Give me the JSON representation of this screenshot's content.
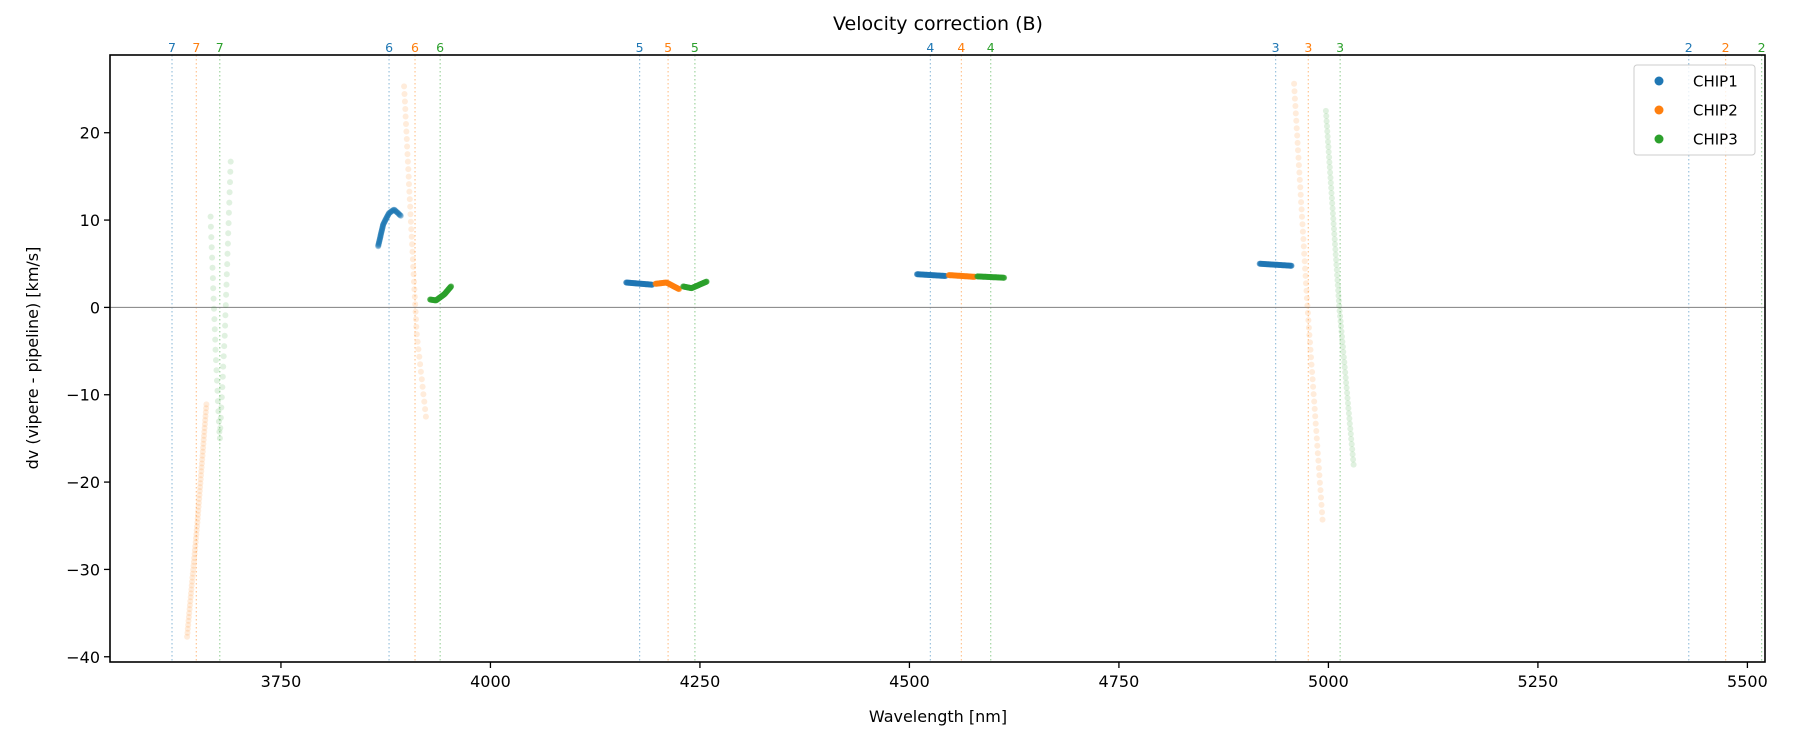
{
  "chart_data": {
    "type": "scatter",
    "title": "Velocity correction (B)",
    "xlabel": "Wavelength [nm]",
    "ylabel": "dv (vipere - pipeline) [km/s]",
    "xlim": [
      3546,
      5521
    ],
    "ylim": [
      -40.6,
      28.9
    ],
    "xticks": [
      3750,
      4000,
      4250,
      4500,
      4750,
      5000,
      5250,
      5500
    ],
    "yticks": [
      -40,
      -30,
      -20,
      -10,
      0,
      10,
      20
    ],
    "xtick_labels": [
      "3750",
      "4000",
      "4250",
      "4500",
      "4750",
      "5000",
      "5250",
      "5500"
    ],
    "ytick_labels": [
      "−40",
      "−30",
      "−20",
      "−10",
      "0",
      "10",
      "20"
    ],
    "grid": false,
    "zero_line": 0,
    "legend": {
      "placement": "top-right",
      "entries": [
        {
          "label": "CHIP1",
          "color": "#1f77b4"
        },
        {
          "label": "CHIP2",
          "color": "#ff7f0e"
        },
        {
          "label": "CHIP3",
          "color": "#2ca02c"
        }
      ]
    },
    "colors": {
      "CHIP1": "#1f77b4",
      "CHIP2": "#ff7f0e",
      "CHIP3": "#2ca02c"
    },
    "order_markers": [
      {
        "order": "7",
        "chip": "CHIP1",
        "x": 3620
      },
      {
        "order": "7",
        "chip": "CHIP2",
        "x": 3649
      },
      {
        "order": "7",
        "chip": "CHIP3",
        "x": 3677
      },
      {
        "order": "6",
        "chip": "CHIP1",
        "x": 3879
      },
      {
        "order": "6",
        "chip": "CHIP2",
        "x": 3910
      },
      {
        "order": "6",
        "chip": "CHIP3",
        "x": 3940
      },
      {
        "order": "5",
        "chip": "CHIP1",
        "x": 4178
      },
      {
        "order": "5",
        "chip": "CHIP2",
        "x": 4212
      },
      {
        "order": "5",
        "chip": "CHIP3",
        "x": 4244
      },
      {
        "order": "4",
        "chip": "CHIP1",
        "x": 4525
      },
      {
        "order": "4",
        "chip": "CHIP2",
        "x": 4562
      },
      {
        "order": "4",
        "chip": "CHIP3",
        "x": 4597
      },
      {
        "order": "3",
        "chip": "CHIP1",
        "x": 4937
      },
      {
        "order": "3",
        "chip": "CHIP2",
        "x": 4976
      },
      {
        "order": "3",
        "chip": "CHIP3",
        "x": 5014
      },
      {
        "order": "2",
        "chip": "CHIP1",
        "x": 5430
      },
      {
        "order": "2",
        "chip": "CHIP2",
        "x": 5474
      },
      {
        "order": "2",
        "chip": "CHIP3",
        "x": 5517
      }
    ],
    "series": [
      {
        "chip": "CHIP2",
        "order": 7,
        "n": 60,
        "alpha": 0.15,
        "points": [
          [
            3638,
            -37.7
          ],
          [
            3650,
            -25
          ],
          [
            3661,
            -11.1
          ]
        ]
      },
      {
        "chip": "CHIP3",
        "order": 7,
        "n": 50,
        "alpha": 0.15,
        "points": [
          [
            3666,
            10.4
          ],
          [
            3672,
            -5
          ],
          [
            3677,
            -15.2
          ],
          [
            3683,
            -3
          ],
          [
            3690,
            16.7
          ]
        ]
      },
      {
        "chip": "CHIP1",
        "order": 6,
        "n": 60,
        "alpha": 0.4,
        "points": [
          [
            3866,
            7.0
          ],
          [
            3872,
            9.5
          ],
          [
            3879,
            10.8
          ],
          [
            3885,
            11.2
          ],
          [
            3893,
            10.5
          ]
        ]
      },
      {
        "chip": "CHIP2",
        "order": 6,
        "n": 45,
        "alpha": 0.15,
        "points": [
          [
            3897,
            25.3
          ],
          [
            3905,
            10
          ],
          [
            3912,
            -3
          ],
          [
            3923,
            -12.5
          ]
        ]
      },
      {
        "chip": "CHIP3",
        "order": 6,
        "n": 50,
        "alpha": 0.6,
        "points": [
          [
            3928,
            0.9
          ],
          [
            3935,
            0.8
          ],
          [
            3945,
            1.5
          ],
          [
            3953,
            2.4
          ]
        ]
      },
      {
        "chip": "CHIP1",
        "order": 5,
        "n": 50,
        "alpha": 0.6,
        "points": [
          [
            4162,
            2.85
          ],
          [
            4193,
            2.6
          ]
        ]
      },
      {
        "chip": "CHIP2",
        "order": 5,
        "n": 50,
        "alpha": 0.6,
        "points": [
          [
            4197,
            2.7
          ],
          [
            4210,
            2.85
          ],
          [
            4225,
            2.1
          ]
        ]
      },
      {
        "chip": "CHIP3",
        "order": 5,
        "n": 50,
        "alpha": 0.6,
        "points": [
          [
            4230,
            2.4
          ],
          [
            4240,
            2.2
          ],
          [
            4258,
            2.96
          ]
        ]
      },
      {
        "chip": "CHIP1",
        "order": 4,
        "n": 50,
        "alpha": 0.6,
        "points": [
          [
            4509,
            3.8
          ],
          [
            4543,
            3.6
          ]
        ]
      },
      {
        "chip": "CHIP2",
        "order": 4,
        "n": 50,
        "alpha": 0.6,
        "points": [
          [
            4547,
            3.7
          ],
          [
            4578,
            3.5
          ]
        ]
      },
      {
        "chip": "CHIP3",
        "order": 4,
        "n": 50,
        "alpha": 0.6,
        "points": [
          [
            4581,
            3.55
          ],
          [
            4613,
            3.4
          ]
        ]
      },
      {
        "chip": "CHIP1",
        "order": 3,
        "n": 50,
        "alpha": 0.6,
        "points": [
          [
            4918,
            5.0
          ],
          [
            4956,
            4.77
          ]
        ]
      },
      {
        "chip": "CHIP2",
        "order": 3,
        "n": 60,
        "alpha": 0.15,
        "points": [
          [
            4959,
            25.6
          ],
          [
            4975,
            0
          ],
          [
            4993,
            -24.3
          ]
        ]
      },
      {
        "chip": "CHIP3",
        "order": 3,
        "n": 70,
        "alpha": 0.15,
        "points": [
          [
            4997,
            22.5
          ],
          [
            5013,
            0
          ],
          [
            5030,
            -18.0
          ]
        ]
      }
    ]
  }
}
